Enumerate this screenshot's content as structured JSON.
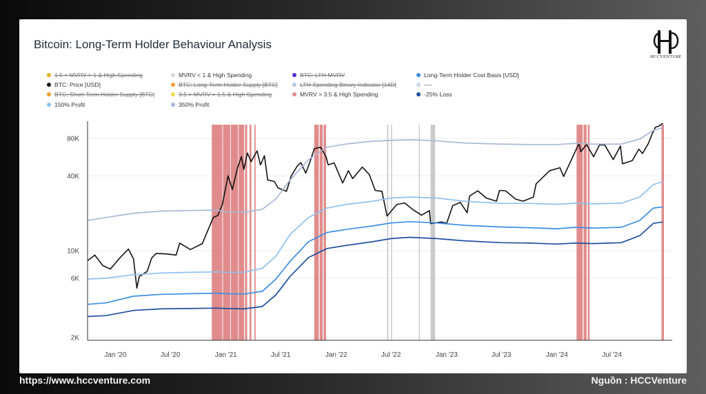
{
  "footer": {
    "url": "https://www.hccventure.com",
    "source": "Nguồn : HCCVenture"
  },
  "logo": {
    "text": "HCCVENTURE"
  },
  "chart_data": {
    "type": "line",
    "title": "Bitcoin: Long-Term Holder Behaviour Analysis",
    "y_scale": "log",
    "ylim": [
      1900,
      110000
    ],
    "y_ticks": [
      {
        "value": 2000,
        "label": "2K"
      },
      {
        "value": 6000,
        "label": "6K"
      },
      {
        "value": 10000,
        "label": "10K"
      },
      {
        "value": 40000,
        "label": "40K"
      },
      {
        "value": 80000,
        "label": "80K"
      }
    ],
    "x_range": [
      "2019-10-01",
      "2024-12-20"
    ],
    "x_ticks": [
      {
        "date": "2020-01-01",
        "label": "Jan '20"
      },
      {
        "date": "2020-07-01",
        "label": "Jul '20"
      },
      {
        "date": "2021-01-01",
        "label": "Jan '21"
      },
      {
        "date": "2021-07-01",
        "label": "Jul '21"
      },
      {
        "date": "2022-01-01",
        "label": "Jan '22"
      },
      {
        "date": "2022-07-01",
        "label": "Jul '22"
      },
      {
        "date": "2023-01-01",
        "label": "Jan '23"
      },
      {
        "date": "2023-07-01",
        "label": "Jul '23"
      },
      {
        "date": "2024-01-01",
        "label": "Jan '24"
      },
      {
        "date": "2024-07-01",
        "label": "Jul '24"
      }
    ],
    "legend": [
      {
        "label": "1.5 > MVRV > 1 & High Spending",
        "color": "#e8b020",
        "active": false
      },
      {
        "label": "MVRV < 1 & High Spending",
        "color": "#d9d9d9",
        "active": true
      },
      {
        "label": "BTC: LTH-MVRV",
        "color": "#5b2bd1",
        "active": false
      },
      {
        "label": "Long-Term Holder Cost Basis [USD]",
        "color": "#3a8ee6",
        "active": true
      },
      {
        "label": "BTC: Price [USD]",
        "color": "#111111",
        "active": true
      },
      {
        "label": "BTC: Long-Term Holder Supply [BTC]",
        "color": "#f0a030",
        "active": false
      },
      {
        "label": "LTH-Spending Binary Indicator [14D]",
        "color": "#b8cce4",
        "active": false
      },
      {
        "label": "----",
        "color": "#c9d6e8",
        "active": true
      },
      {
        "label": "BTC: Short-Term Holder Supply [BTC]",
        "color": "#f0a030",
        "active": false
      },
      {
        "label": "3.5 > MVRV > 1.5 & High Spending",
        "color": "#f2dc4a",
        "active": false
      },
      {
        "label": "MVRV > 3.5 & High Spending",
        "color": "#e38a8a",
        "active": true
      },
      {
        "label": "-25% Loss",
        "color": "#1f4fa0",
        "active": true
      },
      {
        "label": "150% Profit",
        "color": "#8ec0ee",
        "active": true
      },
      {
        "label": "350% Profit",
        "color": "#a8b8d4",
        "active": true
      }
    ],
    "series": [
      {
        "name": "BTC: Price [USD]",
        "color": "#111111",
        "points": [
          [
            "2019-10-01",
            8300
          ],
          [
            "2019-10-25",
            9200
          ],
          [
            "2019-11-20",
            7600
          ],
          [
            "2019-12-15",
            7100
          ],
          [
            "2020-01-15",
            8700
          ],
          [
            "2020-02-13",
            10300
          ],
          [
            "2020-03-01",
            8600
          ],
          [
            "2020-03-12",
            5000
          ],
          [
            "2020-03-20",
            6200
          ],
          [
            "2020-04-15",
            6800
          ],
          [
            "2020-04-30",
            8700
          ],
          [
            "2020-05-15",
            9500
          ],
          [
            "2020-06-20",
            9400
          ],
          [
            "2020-07-20",
            9200
          ],
          [
            "2020-08-01",
            11500
          ],
          [
            "2020-09-05",
            10200
          ],
          [
            "2020-10-15",
            11400
          ],
          [
            "2020-10-25",
            13100
          ],
          [
            "2020-11-20",
            18500
          ],
          [
            "2020-12-05",
            19200
          ],
          [
            "2020-12-20",
            23500
          ],
          [
            "2021-01-08",
            40000
          ],
          [
            "2021-01-22",
            31000
          ],
          [
            "2021-02-08",
            46000
          ],
          [
            "2021-02-21",
            57000
          ],
          [
            "2021-03-01",
            45000
          ],
          [
            "2021-03-13",
            61000
          ],
          [
            "2021-03-25",
            52000
          ],
          [
            "2021-04-14",
            63500
          ],
          [
            "2021-04-25",
            49000
          ],
          [
            "2021-05-08",
            58000
          ],
          [
            "2021-05-19",
            37000
          ],
          [
            "2021-06-10",
            36000
          ],
          [
            "2021-06-22",
            32000
          ],
          [
            "2021-07-20",
            30000
          ],
          [
            "2021-08-05",
            40000
          ],
          [
            "2021-08-25",
            48000
          ],
          [
            "2021-09-06",
            51000
          ],
          [
            "2021-09-22",
            42000
          ],
          [
            "2021-10-05",
            51000
          ],
          [
            "2021-10-20",
            66000
          ],
          [
            "2021-11-10",
            68000
          ],
          [
            "2021-11-28",
            57000
          ],
          [
            "2021-12-05",
            49000
          ],
          [
            "2021-12-25",
            50800
          ],
          [
            "2022-01-22",
            35000
          ],
          [
            "2022-02-10",
            44000
          ],
          [
            "2022-02-24",
            38000
          ],
          [
            "2022-03-28",
            47000
          ],
          [
            "2022-04-20",
            41000
          ],
          [
            "2022-05-10",
            30500
          ],
          [
            "2022-06-01",
            30000
          ],
          [
            "2022-06-18",
            19000
          ],
          [
            "2022-07-20",
            23500
          ],
          [
            "2022-08-15",
            24200
          ],
          [
            "2022-09-10",
            21500
          ],
          [
            "2022-10-10",
            19300
          ],
          [
            "2022-11-05",
            21000
          ],
          [
            "2022-11-09",
            16500
          ],
          [
            "2022-12-15",
            17000
          ],
          [
            "2023-01-01",
            16600
          ],
          [
            "2023-01-21",
            23000
          ],
          [
            "2023-02-15",
            24500
          ],
          [
            "2023-03-10",
            20200
          ],
          [
            "2023-03-18",
            27500
          ],
          [
            "2023-04-14",
            30300
          ],
          [
            "2023-05-12",
            26500
          ],
          [
            "2023-06-15",
            25000
          ],
          [
            "2023-06-25",
            30500
          ],
          [
            "2023-07-15",
            30300
          ],
          [
            "2023-08-17",
            26000
          ],
          [
            "2023-09-11",
            25000
          ],
          [
            "2023-10-15",
            27000
          ],
          [
            "2023-10-24",
            34500
          ],
          [
            "2023-12-08",
            44000
          ],
          [
            "2024-01-11",
            46500
          ],
          [
            "2024-01-23",
            39500
          ],
          [
            "2024-02-15",
            52000
          ],
          [
            "2024-03-14",
            73000
          ],
          [
            "2024-03-20",
            62500
          ],
          [
            "2024-04-08",
            71500
          ],
          [
            "2024-05-01",
            57000
          ],
          [
            "2024-05-21",
            71000
          ],
          [
            "2024-06-07",
            71000
          ],
          [
            "2024-07-05",
            54000
          ],
          [
            "2024-07-29",
            69500
          ],
          [
            "2024-08-05",
            50000
          ],
          [
            "2024-09-06",
            53000
          ],
          [
            "2024-09-28",
            65500
          ],
          [
            "2024-10-10",
            60500
          ],
          [
            "2024-10-29",
            72500
          ],
          [
            "2024-11-12",
            88000
          ],
          [
            "2024-11-22",
            98500
          ],
          [
            "2024-12-05",
            101000
          ],
          [
            "2024-12-17",
            106000
          ]
        ]
      },
      {
        "name": "350% Profit",
        "color": "#a8b8d4",
        "points": [
          [
            "2019-10-01",
            17500
          ],
          [
            "2019-12-01",
            18500
          ],
          [
            "2020-03-01",
            20000
          ],
          [
            "2020-06-01",
            20800
          ],
          [
            "2020-09-01",
            21000
          ],
          [
            "2020-12-01",
            21200
          ],
          [
            "2021-01-01",
            20600
          ],
          [
            "2021-03-01",
            20300
          ],
          [
            "2021-05-01",
            21500
          ],
          [
            "2021-06-15",
            26000
          ],
          [
            "2021-08-01",
            37000
          ],
          [
            "2021-10-01",
            54000
          ],
          [
            "2021-12-01",
            68000
          ],
          [
            "2022-02-01",
            72000
          ],
          [
            "2022-05-01",
            76000
          ],
          [
            "2022-07-01",
            77000
          ],
          [
            "2022-09-01",
            78000
          ],
          [
            "2022-12-01",
            76500
          ],
          [
            "2023-03-01",
            73500
          ],
          [
            "2023-07-01",
            72000
          ],
          [
            "2023-10-01",
            71500
          ],
          [
            "2024-01-01",
            71500
          ],
          [
            "2024-03-01",
            73000
          ],
          [
            "2024-05-01",
            72000
          ],
          [
            "2024-08-01",
            72000
          ],
          [
            "2024-10-01",
            79000
          ],
          [
            "2024-11-15",
            93000
          ],
          [
            "2024-12-17",
            98000
          ]
        ]
      },
      {
        "name": "150% Profit",
        "color": "#8ec0ee",
        "points": [
          [
            "2019-10-01",
            5900
          ],
          [
            "2019-12-01",
            6000
          ],
          [
            "2020-03-01",
            6400
          ],
          [
            "2020-06-01",
            6600
          ],
          [
            "2020-09-01",
            6700
          ],
          [
            "2020-12-01",
            6750
          ],
          [
            "2021-01-01",
            6700
          ],
          [
            "2021-03-01",
            6700
          ],
          [
            "2021-05-01",
            7200
          ],
          [
            "2021-06-15",
            9000
          ],
          [
            "2021-08-01",
            13500
          ],
          [
            "2021-10-01",
            18500
          ],
          [
            "2021-12-01",
            22000
          ],
          [
            "2022-02-01",
            23500
          ],
          [
            "2022-05-01",
            25000
          ],
          [
            "2022-07-01",
            26500
          ],
          [
            "2022-09-01",
            27000
          ],
          [
            "2022-12-01",
            26500
          ],
          [
            "2023-03-01",
            25000
          ],
          [
            "2023-07-01",
            24000
          ],
          [
            "2023-10-01",
            24000
          ],
          [
            "2024-01-01",
            23600
          ],
          [
            "2024-03-01",
            24100
          ],
          [
            "2024-05-01",
            23800
          ],
          [
            "2024-08-01",
            24100
          ],
          [
            "2024-10-01",
            27000
          ],
          [
            "2024-11-15",
            34000
          ],
          [
            "2024-12-17",
            36000
          ]
        ]
      },
      {
        "name": "Long-Term Holder Cost Basis [USD]",
        "color": "#3a8ee6",
        "points": [
          [
            "2019-10-01",
            3700
          ],
          [
            "2019-12-01",
            3800
          ],
          [
            "2020-03-01",
            4300
          ],
          [
            "2020-06-01",
            4450
          ],
          [
            "2020-09-01",
            4500
          ],
          [
            "2020-12-01",
            4550
          ],
          [
            "2021-01-01",
            4500
          ],
          [
            "2021-03-01",
            4480
          ],
          [
            "2021-05-01",
            4700
          ],
          [
            "2021-06-15",
            5900
          ],
          [
            "2021-08-01",
            8200
          ],
          [
            "2021-10-01",
            11800
          ],
          [
            "2021-12-01",
            14000
          ],
          [
            "2022-02-01",
            14800
          ],
          [
            "2022-05-01",
            15800
          ],
          [
            "2022-07-01",
            16700
          ],
          [
            "2022-09-01",
            17100
          ],
          [
            "2022-12-01",
            16700
          ],
          [
            "2023-03-01",
            16000
          ],
          [
            "2023-07-01",
            15500
          ],
          [
            "2023-10-01",
            15300
          ],
          [
            "2024-01-01",
            15000
          ],
          [
            "2024-03-01",
            15400
          ],
          [
            "2024-05-01",
            15200
          ],
          [
            "2024-08-01",
            15400
          ],
          [
            "2024-10-01",
            17500
          ],
          [
            "2024-11-15",
            22000
          ],
          [
            "2024-12-17",
            22500
          ]
        ]
      },
      {
        "name": "-25% Loss",
        "color": "#1f4fa0",
        "points": [
          [
            "2019-10-01",
            2950
          ],
          [
            "2019-12-01",
            3000
          ],
          [
            "2020-03-01",
            3300
          ],
          [
            "2020-06-01",
            3400
          ],
          [
            "2020-09-01",
            3420
          ],
          [
            "2020-12-01",
            3450
          ],
          [
            "2021-01-01",
            3420
          ],
          [
            "2021-03-01",
            3400
          ],
          [
            "2021-05-01",
            3550
          ],
          [
            "2021-06-15",
            4400
          ],
          [
            "2021-08-01",
            6200
          ],
          [
            "2021-10-01",
            8800
          ],
          [
            "2021-12-01",
            10400
          ],
          [
            "2022-02-01",
            11000
          ],
          [
            "2022-05-01",
            11800
          ],
          [
            "2022-07-01",
            12500
          ],
          [
            "2022-09-01",
            12800
          ],
          [
            "2022-12-01",
            12500
          ],
          [
            "2023-03-01",
            12000
          ],
          [
            "2023-07-01",
            11600
          ],
          [
            "2023-10-01",
            11500
          ],
          [
            "2024-01-01",
            11300
          ],
          [
            "2024-03-01",
            11500
          ],
          [
            "2024-05-01",
            11400
          ],
          [
            "2024-08-01",
            11600
          ],
          [
            "2024-10-01",
            13200
          ],
          [
            "2024-11-15",
            16600
          ],
          [
            "2024-12-17",
            17000
          ]
        ]
      }
    ],
    "high_spending_mvrv_gt_3_5": [
      [
        "2020-11-15",
        "2020-12-20"
      ],
      [
        "2020-12-22",
        "2021-01-15"
      ],
      [
        "2021-01-17",
        "2021-02-10"
      ],
      [
        "2021-02-12",
        "2021-03-02"
      ],
      [
        "2021-03-05",
        "2021-03-12"
      ],
      [
        "2021-03-20",
        "2021-03-26"
      ],
      [
        "2021-04-05",
        "2021-04-09"
      ],
      [
        "2021-10-20",
        "2021-11-04"
      ],
      [
        "2021-11-07",
        "2021-11-17"
      ],
      [
        "2021-11-20",
        "2021-11-28"
      ],
      [
        "2024-03-06",
        "2024-03-26"
      ],
      [
        "2024-03-29",
        "2024-04-08"
      ],
      [
        "2024-04-12",
        "2024-04-18"
      ],
      [
        "2024-12-12",
        "2024-12-20"
      ]
    ],
    "high_spending_mvrv_lt_1": [
      [
        "2022-06-18",
        "2022-06-22"
      ],
      [
        "2022-07-01",
        "2022-07-04"
      ],
      [
        "2022-10-01",
        "2022-10-03"
      ],
      [
        "2022-11-09",
        "2022-11-24"
      ]
    ]
  }
}
